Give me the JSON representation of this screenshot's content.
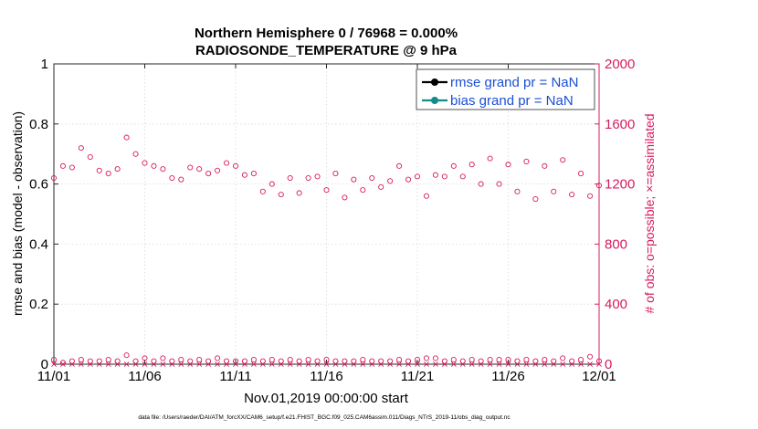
{
  "chart_data": {
    "type": "scatter",
    "title_line1": "Northern Hemisphere 0 / 76968 = 0.000%",
    "title_line2": "RADIOSONDE_TEMPERATURE @ 9 hPa",
    "xlabel": "Nov.01,2019 00:00:00 start",
    "ylabel": "rmse and bias (model - observation)",
    "ylabel_right": "# of obs: o=possible; ×=assimilated",
    "footnote": "data file: /Users/raeder/DAI/ATM_forcXX/CAM6_setup/f.e21.FHIST_BGC.f09_025.CAM6assim.011/Diags_NTrS_2019-11/obs_diag_output.nc",
    "xlim": [
      0,
      30
    ],
    "ylim": [
      0,
      1
    ],
    "ylim_right": [
      0,
      2000
    ],
    "x_ticks": [
      0,
      5,
      10,
      15,
      20,
      25,
      30
    ],
    "x_tick_labels": [
      "11/01",
      "11/06",
      "11/11",
      "11/16",
      "11/21",
      "11/26",
      "12/01"
    ],
    "y_ticks": [
      0,
      0.2,
      0.4,
      0.6,
      0.8,
      1
    ],
    "y_tick_labels": [
      "0",
      "0.2",
      "0.4",
      "0.6",
      "0.8",
      "1"
    ],
    "y_right_ticks": [
      0,
      400,
      800,
      1200,
      1600,
      2000
    ],
    "y_right_tick_labels": [
      "0",
      "400",
      "800",
      "1200",
      "1600",
      "2000"
    ],
    "grid": true,
    "legend": {
      "location": "top-right",
      "entries": [
        {
          "label": "rmse grand pr = NaN",
          "color": "#000000"
        },
        {
          "label": "bias grand pr = NaN",
          "color": "#138c8c"
        }
      ]
    },
    "colors": {
      "obs": "#d81b60",
      "rmse": "#000000",
      "bias": "#138c8c",
      "legend_text": "#1a4fd6"
    },
    "series": [
      {
        "name": "possible observations (o)",
        "axis": "right",
        "marker": "circle",
        "x": [
          0,
          0.5,
          1,
          1.5,
          2,
          2.5,
          3,
          3.5,
          4,
          4.5,
          5,
          5.5,
          6,
          6.5,
          7,
          7.5,
          8,
          8.5,
          9,
          9.5,
          10,
          10.5,
          11,
          11.5,
          12,
          12.5,
          13,
          13.5,
          14,
          14.5,
          15,
          15.5,
          16,
          16.5,
          17,
          17.5,
          18,
          18.5,
          19,
          19.5,
          20,
          20.5,
          21,
          21.5,
          22,
          22.5,
          23,
          23.5,
          24,
          24.5,
          25,
          25.5,
          26,
          26.5,
          27,
          27.5,
          28,
          28.5,
          29,
          29.5,
          30
        ],
        "values": [
          1240,
          1320,
          1310,
          1440,
          1380,
          1290,
          1270,
          1300,
          1510,
          1400,
          1340,
          1320,
          1300,
          1240,
          1230,
          1310,
          1300,
          1270,
          1290,
          1340,
          1320,
          1260,
          1270,
          1150,
          1200,
          1130,
          1240,
          1140,
          1240,
          1250,
          1160,
          1270,
          1110,
          1230,
          1160,
          1240,
          1180,
          1220,
          1320,
          1230,
          1250,
          1120,
          1260,
          1250,
          1320,
          1250,
          1330,
          1200,
          1370,
          1200,
          1330,
          1150,
          1350,
          1100,
          1320,
          1150,
          1360,
          1130,
          1270,
          1120,
          1190
        ]
      },
      {
        "name": "assimilated observations (x)",
        "axis": "right",
        "marker": "cross",
        "x": [
          0,
          0.5,
          1,
          1.5,
          2,
          2.5,
          3,
          3.5,
          4,
          4.5,
          5,
          5.5,
          6,
          6.5,
          7,
          7.5,
          8,
          8.5,
          9,
          9.5,
          10,
          10.5,
          11,
          11.5,
          12,
          12.5,
          13,
          13.5,
          14,
          14.5,
          15,
          15.5,
          16,
          16.5,
          17,
          17.5,
          18,
          18.5,
          19,
          19.5,
          20,
          20.5,
          21,
          21.5,
          22,
          22.5,
          23,
          23.5,
          24,
          24.5,
          25,
          25.5,
          26,
          26.5,
          27,
          27.5,
          28,
          28.5,
          29,
          29.5,
          30
        ],
        "values": [
          0,
          0,
          0,
          0,
          0,
          0,
          0,
          0,
          0,
          0,
          0,
          0,
          0,
          0,
          0,
          0,
          0,
          0,
          0,
          0,
          0,
          0,
          0,
          0,
          0,
          0,
          0,
          0,
          0,
          0,
          0,
          0,
          0,
          0,
          0,
          0,
          0,
          0,
          0,
          0,
          0,
          0,
          0,
          0,
          0,
          0,
          0,
          0,
          0,
          0,
          0,
          0,
          0,
          0,
          0,
          0,
          0,
          0,
          0,
          0,
          0
        ]
      },
      {
        "name": "possible observations (o, second region)",
        "axis": "right",
        "marker": "circle",
        "x": [
          0,
          0.5,
          1,
          1.5,
          2,
          2.5,
          3,
          3.5,
          4,
          4.5,
          5,
          5.5,
          6,
          6.5,
          7,
          7.5,
          8,
          8.5,
          9,
          9.5,
          10,
          10.5,
          11,
          11.5,
          12,
          12.5,
          13,
          13.5,
          14,
          14.5,
          15,
          15.5,
          16,
          16.5,
          17,
          17.5,
          18,
          18.5,
          19,
          19.5,
          20,
          20.5,
          21,
          21.5,
          22,
          22.5,
          23,
          23.5,
          24,
          24.5,
          25,
          25.5,
          26,
          26.5,
          27,
          27.5,
          28,
          28.5,
          29,
          29.5,
          30
        ],
        "values": [
          30,
          10,
          20,
          30,
          20,
          20,
          30,
          20,
          60,
          20,
          40,
          20,
          40,
          20,
          30,
          20,
          30,
          20,
          40,
          20,
          20,
          20,
          30,
          20,
          30,
          20,
          30,
          20,
          30,
          20,
          30,
          20,
          20,
          20,
          30,
          20,
          20,
          20,
          30,
          20,
          30,
          40,
          40,
          20,
          30,
          20,
          30,
          20,
          30,
          30,
          30,
          20,
          30,
          20,
          30,
          20,
          40,
          20,
          30,
          50,
          20
        ]
      }
    ]
  }
}
